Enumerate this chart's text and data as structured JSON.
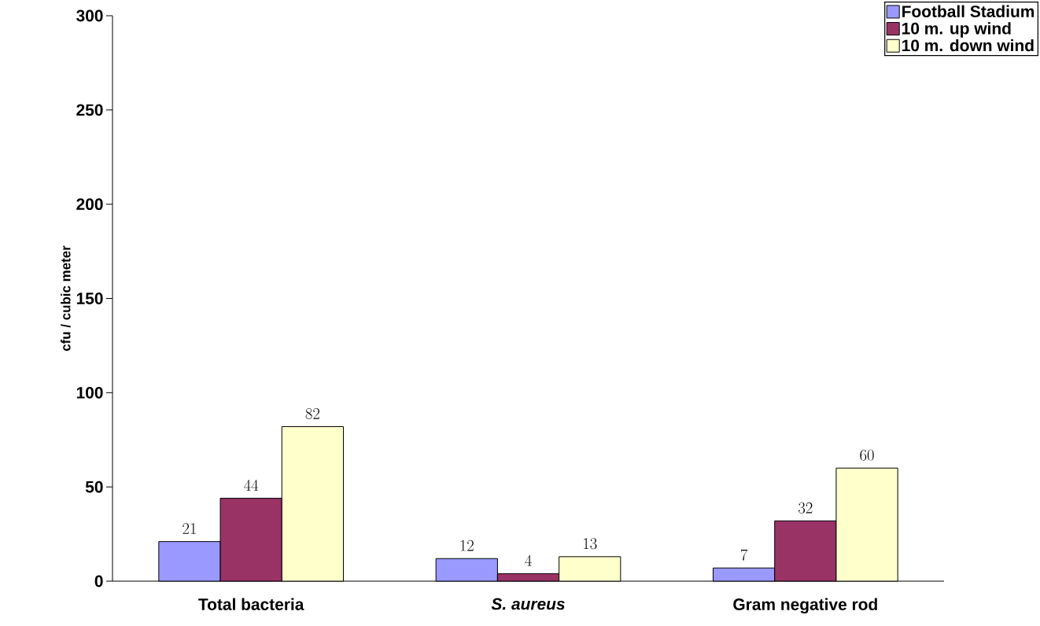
{
  "chart_data": {
    "type": "bar",
    "ylabel": "cfu / cubic meter",
    "categories": [
      "Total bacteria",
      "*S. aureus*",
      "Gram negative rod"
    ],
    "series": [
      {
        "name": "Football Stadium",
        "color": "#9999ff",
        "values": [
          21,
          12,
          7
        ]
      },
      {
        "name": "10 m. up wind",
        "color": "#993366",
        "values": [
          44,
          4,
          32
        ]
      },
      {
        "name": "10 m. down wind",
        "color": "#ffffcc",
        "values": [
          82,
          13,
          60
        ]
      }
    ],
    "ylim": [
      0,
      300
    ],
    "yticks": [
      0,
      50,
      100,
      150,
      200,
      250,
      300
    ],
    "data_labels": true,
    "legend": "top right",
    "grid": false
  }
}
